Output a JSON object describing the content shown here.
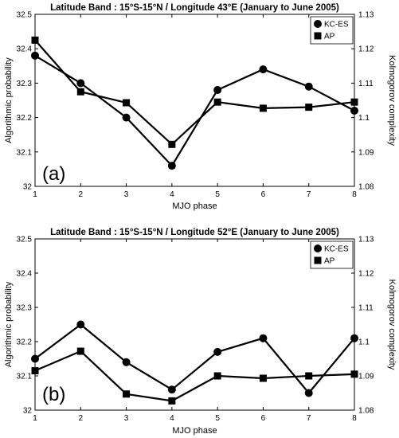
{
  "chart_data": [
    {
      "type": "line",
      "title": "Latitude Band : 15°S-15°N / Longitude 43°E (January to June 2005)",
      "xlabel": "MJO phase",
      "ylabel": "Algorithmic probability",
      "y2label": "Kolmogorov complexity",
      "panel_label": "(a)",
      "x": [
        1,
        2,
        3,
        4,
        5,
        6,
        7,
        8
      ],
      "ylim": [
        32,
        32.5
      ],
      "y2lim": [
        1.08,
        1.13
      ],
      "yticks": [
        "32",
        "32.1",
        "32.2",
        "32.3",
        "32.4",
        "32.5"
      ],
      "y2ticks": [
        "1.08",
        "1.09",
        "1.1",
        "1.11",
        "1.12",
        "1.13"
      ],
      "xticks": [
        "1",
        "2",
        "3",
        "4",
        "5",
        "6",
        "7",
        "8"
      ],
      "legend_position": "top-right",
      "series": [
        {
          "name": "KC-ES",
          "marker": "circle",
          "axis": "right",
          "values": [
            1.118,
            1.11,
            1.1,
            1.086,
            1.108,
            1.114,
            1.109,
            1.102
          ]
        },
        {
          "name": "AP",
          "marker": "square",
          "axis": "left",
          "values": [
            32.425,
            32.275,
            32.243,
            32.122,
            32.245,
            32.227,
            32.23,
            32.245
          ]
        }
      ]
    },
    {
      "type": "line",
      "title": "Latitude Band : 15°S-15°N / Longitude 52°E (January to June 2005)",
      "xlabel": "MJO phase",
      "ylabel": "Algorithmic probability",
      "y2label": "Kolmogorov complexity",
      "panel_label": "(b)",
      "x": [
        1,
        2,
        3,
        4,
        5,
        6,
        7,
        8
      ],
      "ylim": [
        32,
        32.5
      ],
      "y2lim": [
        1.08,
        1.13
      ],
      "yticks": [
        "32",
        "32.1",
        "32.2",
        "32.3",
        "32.4",
        "32.5"
      ],
      "y2ticks": [
        "1.08",
        "1.09",
        "1.1",
        "1.11",
        "1.12",
        "1.13"
      ],
      "xticks": [
        "1",
        "2",
        "3",
        "4",
        "5",
        "6",
        "7",
        "8"
      ],
      "legend_position": "top-right",
      "series": [
        {
          "name": "KC-ES",
          "marker": "circle",
          "axis": "right",
          "values": [
            1.095,
            1.105,
            1.094,
            1.086,
            1.097,
            1.101,
            1.085,
            1.101
          ]
        },
        {
          "name": "AP",
          "marker": "square",
          "axis": "left",
          "values": [
            32.115,
            32.172,
            32.047,
            32.027,
            32.1,
            32.093,
            32.1,
            32.105
          ]
        }
      ]
    }
  ]
}
